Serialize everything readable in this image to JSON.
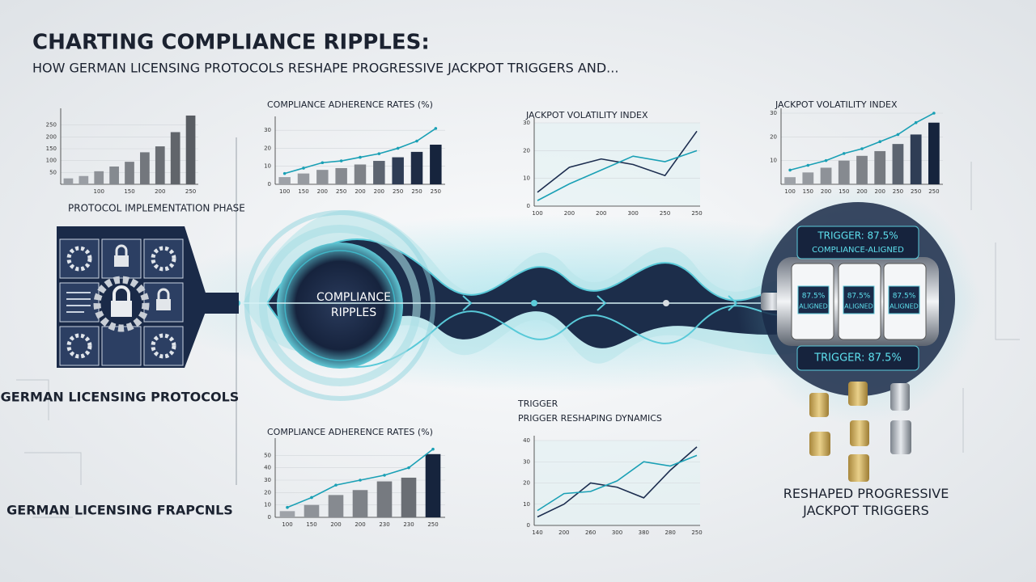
{
  "title": "CHARTING COMPLIANCE RIPPLES:",
  "subtitle": "HOW GERMAN LICENSING PROTOCOLS RESHAPE PROGRESSIVE JACKPOT TRIGGERS AND...",
  "phase_label": "PROTOCOL IMPLEMENTATION PHASE",
  "left_label": "GERMAN LICENSING PROTOCOLS",
  "left_label_2": "GERMAN LICENSING FRAPCNLS",
  "center_label": "COMPLIANCE RIPPLES",
  "slot": {
    "top_line_1": "TRIGGER: 87.5%",
    "top_line_2": "COMPLIANCE-ALIGNED",
    "reels": [
      [
        "87.5%",
        "ALIGNED"
      ],
      [
        "87.5%",
        "ALIGNED"
      ],
      [
        "87.5%",
        "ALIGNED"
      ]
    ],
    "bottom": "TRIGGER: 87.5%"
  },
  "right_label": "RESHAPED PROGRESSIVE JACKPOT TRIGGERS",
  "chart_data": [
    {
      "type": "combo",
      "categories": [
        null,
        null,
        "100",
        null,
        "150",
        null,
        "200",
        null,
        "250"
      ],
      "ylim": [
        0,
        300
      ],
      "yticks": [
        50,
        100,
        150,
        200,
        250
      ],
      "series": [
        {
          "type": "bar",
          "color": [
            "#9a9ea4",
            "#9a9ea4",
            "#8e9298",
            "#858a90",
            "#7c8086",
            "#73777d",
            "#6a6e74",
            "#61656b",
            "#585c62"
          ],
          "values": [
            25,
            35,
            55,
            75,
            95,
            135,
            160,
            220,
            290
          ]
        }
      ]
    },
    {
      "type": "combo",
      "title": "COMPLIANCE ADHERENCE RATES (%)",
      "categories": [
        "100",
        "150",
        "200",
        "250",
        "200",
        "200",
        "250",
        "250",
        "250"
      ],
      "ylim": [
        0,
        35
      ],
      "yticks": [
        0,
        10,
        20,
        30
      ],
      "series": [
        {
          "type": "bar",
          "color": [
            "#9ea2a8",
            "#969aa0",
            "#8e9298",
            "#868a90",
            "#7e8288",
            "#5c6470",
            "#2f3d55",
            "#1f2c45",
            "#16243d"
          ],
          "values": [
            4,
            6,
            8,
            9,
            11,
            13,
            15,
            18,
            22
          ]
        },
        {
          "type": "line",
          "color": "#1aa0b5",
          "values": [
            6,
            9,
            12,
            13,
            15,
            17,
            20,
            24,
            31
          ]
        }
      ]
    },
    {
      "type": "line",
      "title": "JACKPOT VOLATILITY INDEX",
      "categories": [
        "100",
        "200",
        "200",
        "300",
        "250",
        "250"
      ],
      "ylim": [
        0,
        30
      ],
      "yticks": [
        0,
        10,
        20,
        30
      ],
      "series": [
        {
          "type": "line",
          "color": "#1c2d4f",
          "values": [
            5,
            14,
            17,
            15,
            11,
            27
          ]
        },
        {
          "type": "line",
          "color": "#1aa0b5",
          "values": [
            2,
            8,
            13,
            18,
            16,
            20
          ]
        }
      ]
    },
    {
      "type": "combo",
      "title": "JACKPOT VOLATILITY INDEX",
      "categories": [
        "100",
        "150",
        "200",
        "150",
        "200",
        "200",
        "250",
        "250",
        "250"
      ],
      "ylim": [
        0,
        30
      ],
      "yticks": [
        10,
        20,
        30
      ],
      "series": [
        {
          "type": "bar",
          "color": [
            "#9ea2a8",
            "#969aa0",
            "#8e9298",
            "#868a90",
            "#7e8288",
            "#767a80",
            "#5c6470",
            "#2f3d55",
            "#16243d"
          ],
          "values": [
            3,
            5,
            7,
            10,
            12,
            14,
            17,
            21,
            26
          ]
        },
        {
          "type": "line",
          "color": "#1aa0b5",
          "values": [
            6,
            8,
            10,
            13,
            15,
            18,
            21,
            26,
            30
          ]
        }
      ]
    },
    {
      "type": "combo",
      "title": "COMPLIANCE ADHERENCE RATES (%)",
      "categories": [
        "100",
        "150",
        "200",
        "200",
        "230",
        "230",
        "250"
      ],
      "ylim": [
        0,
        60
      ],
      "yticks": [
        0,
        10,
        20,
        30,
        40,
        50
      ],
      "series": [
        {
          "type": "bar",
          "color": [
            "#9ea2a8",
            "#8e9298",
            "#868a90",
            "#7e8288",
            "#767a80",
            "#6a6e74",
            "#16243d"
          ],
          "values": [
            5,
            10,
            18,
            22,
            29,
            32,
            51
          ]
        },
        {
          "type": "line",
          "color": "#1aa0b5",
          "values": [
            8,
            16,
            26,
            30,
            34,
            40,
            55
          ]
        }
      ]
    },
    {
      "type": "line",
      "title": "TRIGGER",
      "subtitle": "PRIGGER RESHAPING DYNAMICS",
      "categories": [
        "140",
        "200",
        "260",
        "300",
        "380",
        "280",
        "250"
      ],
      "ylim": [
        0,
        40
      ],
      "yticks": [
        0,
        10,
        20,
        30,
        40
      ],
      "series": [
        {
          "type": "line",
          "color": "#1c2d4f",
          "values": [
            4,
            10,
            20,
            18,
            13,
            26,
            37
          ]
        },
        {
          "type": "line",
          "color": "#1aa0b5",
          "values": [
            7,
            15,
            16,
            21,
            30,
            28,
            33
          ]
        }
      ]
    }
  ]
}
